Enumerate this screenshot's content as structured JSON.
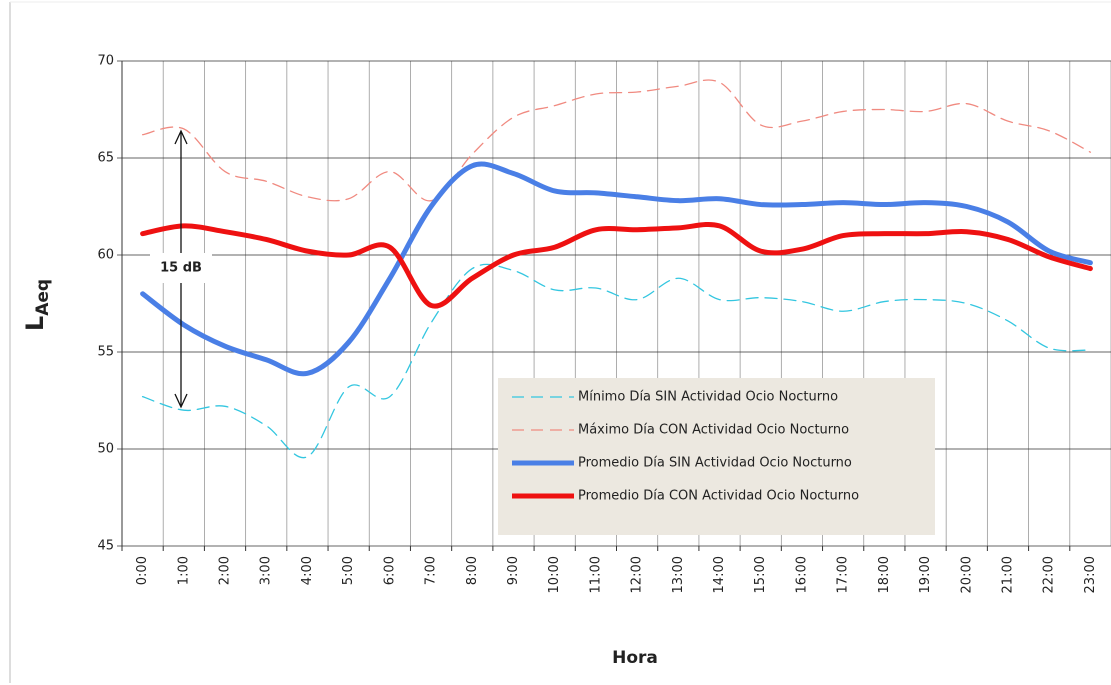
{
  "chart_data": {
    "type": "line",
    "categories": [
      "0:00",
      "1:00",
      "2:00",
      "3:00",
      "4:00",
      "5:00",
      "6:00",
      "7:00",
      "8:00",
      "9:00",
      "10:00",
      "11:00",
      "12:00",
      "13:00",
      "14:00",
      "15:00",
      "16:00",
      "17:00",
      "18:00",
      "19:00",
      "20:00",
      "21:00",
      "22:00",
      "23:00"
    ],
    "series": [
      {
        "name": "Mínimo Día SIN Actividad Ocio Nocturno",
        "color": "#33c6e0",
        "style": "dashed",
        "width": 1.3,
        "values": [
          52.7,
          52.0,
          52.2,
          51.2,
          49.6,
          53.2,
          52.7,
          56.5,
          59.3,
          59.2,
          58.2,
          58.3,
          57.7,
          58.8,
          57.7,
          57.8,
          57.6,
          57.1,
          57.6,
          57.7,
          57.5,
          56.6,
          55.2,
          55.1
        ]
      },
      {
        "name": "Máximo Día CON Actividad Ocio Nocturno",
        "color": "#f08a80",
        "style": "dashed",
        "width": 1.3,
        "values": [
          66.2,
          66.5,
          64.3,
          63.8,
          63.0,
          62.9,
          64.3,
          62.8,
          65.2,
          67.1,
          67.7,
          68.3,
          68.4,
          68.7,
          68.9,
          66.7,
          66.9,
          67.4,
          67.5,
          67.4,
          67.8,
          66.9,
          66.4,
          65.3
        ]
      },
      {
        "name": "Promedio Día SIN Actividad Ocio Nocturno",
        "color": "#4a7fe6",
        "style": "solid",
        "width": 5,
        "values": [
          58.0,
          56.4,
          55.3,
          54.6,
          53.9,
          55.5,
          58.8,
          62.5,
          64.6,
          64.2,
          63.3,
          63.2,
          63.0,
          62.8,
          62.9,
          62.6,
          62.6,
          62.7,
          62.6,
          62.7,
          62.5,
          61.7,
          60.2,
          59.6
        ]
      },
      {
        "name": "Promedio Día CON Actividad Ocio Nocturno",
        "color": "#ee1111",
        "style": "solid",
        "width": 5,
        "values": [
          61.1,
          61.5,
          61.2,
          60.8,
          60.2,
          60.0,
          60.4,
          57.4,
          58.8,
          60.0,
          60.4,
          61.3,
          61.3,
          61.4,
          61.5,
          60.2,
          60.3,
          61.0,
          61.1,
          61.1,
          61.2,
          60.8,
          59.9,
          59.3
        ]
      }
    ],
    "ylim": [
      45,
      70
    ],
    "yticks": [
      45,
      50,
      55,
      60,
      65,
      70
    ],
    "grid": true,
    "x_label": "Hora",
    "y_label": {
      "main": "L",
      "sub": "Aeq"
    },
    "annotation": "15 dB"
  }
}
